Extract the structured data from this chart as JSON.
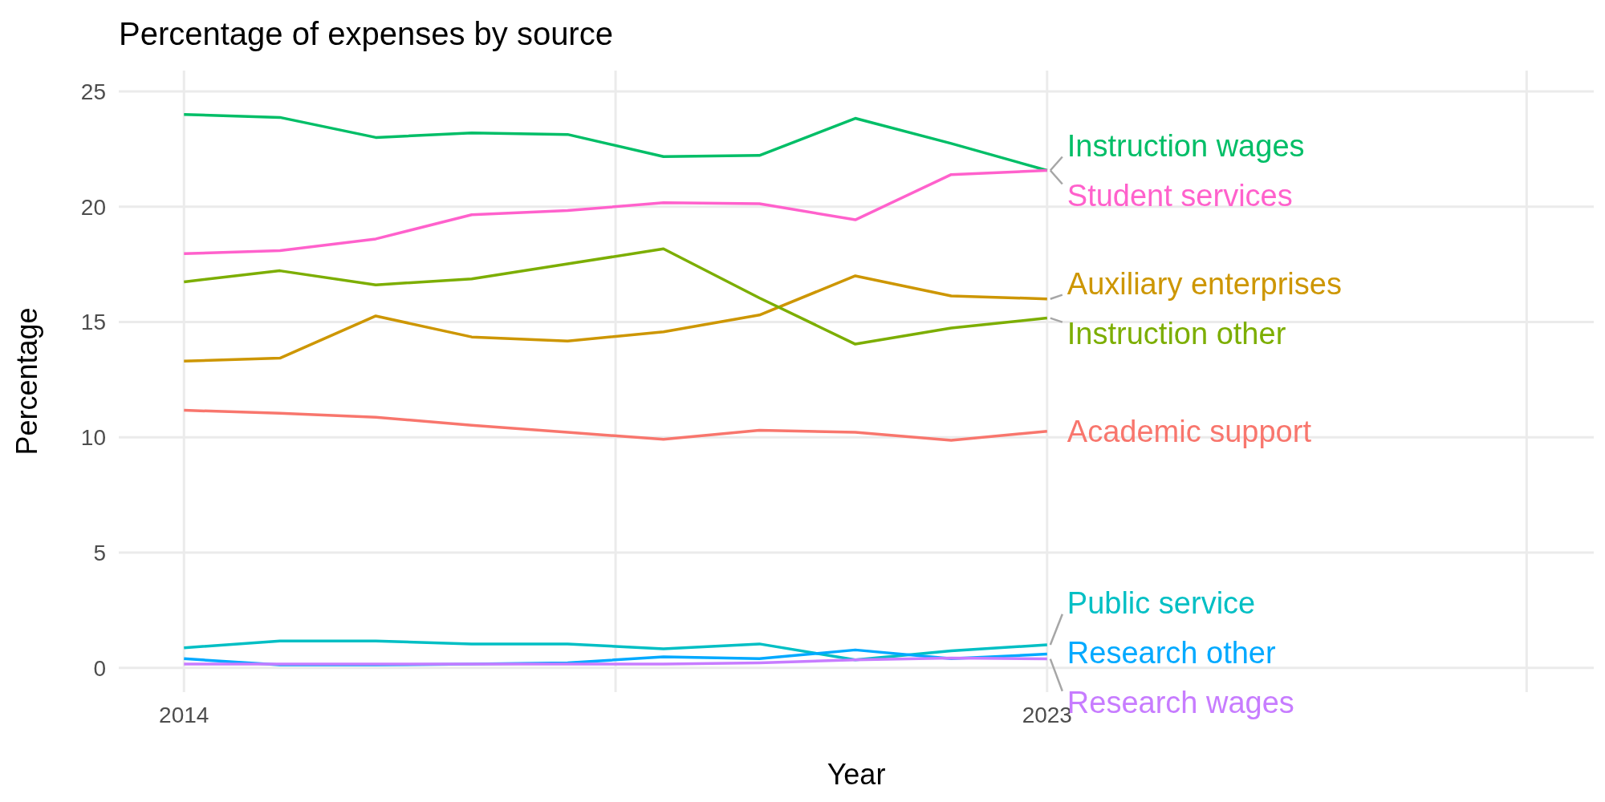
{
  "chart_data": {
    "type": "line",
    "title": "Percentage of expenses by source",
    "xlabel": "Year",
    "ylabel": "Percentage",
    "x": [
      2014,
      2015,
      2016,
      2017,
      2018,
      2019,
      2020,
      2021,
      2022,
      2023
    ],
    "xlim": [
      2013.32,
      2028.7
    ],
    "xticks": [
      2014,
      {
        "value": 2018.5,
        "label": null
      },
      2023,
      {
        "value": 2028,
        "label": null
      }
    ],
    "ylim": [
      -1.05,
      25.9
    ],
    "yticks": [
      0,
      5,
      10,
      15,
      20,
      25
    ],
    "grid": true,
    "series": [
      {
        "name": "Academic support",
        "color": "#f8766d",
        "values": [
          11.17,
          11.04,
          10.87,
          10.52,
          10.22,
          9.91,
          10.3,
          10.22,
          9.87,
          10.26
        ]
      },
      {
        "name": "Auxiliary enterprises",
        "color": "#cd9600",
        "values": [
          13.3,
          13.43,
          15.26,
          14.35,
          14.17,
          14.57,
          15.3,
          17.0,
          16.13,
          16.0
        ]
      },
      {
        "name": "Instruction other",
        "color": "#7cae00",
        "values": [
          16.74,
          17.22,
          16.61,
          16.87,
          17.52,
          18.17,
          16.04,
          14.04,
          14.74,
          15.17
        ]
      },
      {
        "name": "Instruction wages",
        "color": "#00be67",
        "values": [
          24.0,
          23.87,
          23.0,
          23.2,
          23.13,
          22.17,
          22.22,
          23.83,
          22.74,
          21.57
        ]
      },
      {
        "name": "Public service",
        "color": "#00bfc4",
        "values": [
          0.87,
          1.17,
          1.17,
          1.04,
          1.04,
          0.83,
          1.04,
          0.35,
          0.74,
          1.0
        ]
      },
      {
        "name": "Research other",
        "color": "#00a9ff",
        "values": [
          0.4,
          0.13,
          0.13,
          0.17,
          0.22,
          0.48,
          0.4,
          0.78,
          0.4,
          0.6
        ]
      },
      {
        "name": "Research wages",
        "color": "#c77cff",
        "values": [
          0.17,
          0.17,
          0.17,
          0.17,
          0.17,
          0.17,
          0.22,
          0.35,
          0.43,
          0.39
        ]
      },
      {
        "name": "Student services",
        "color": "#ff61cc",
        "values": [
          17.96,
          18.09,
          18.6,
          19.65,
          19.83,
          20.17,
          20.13,
          19.43,
          21.39,
          21.57
        ]
      }
    ]
  }
}
